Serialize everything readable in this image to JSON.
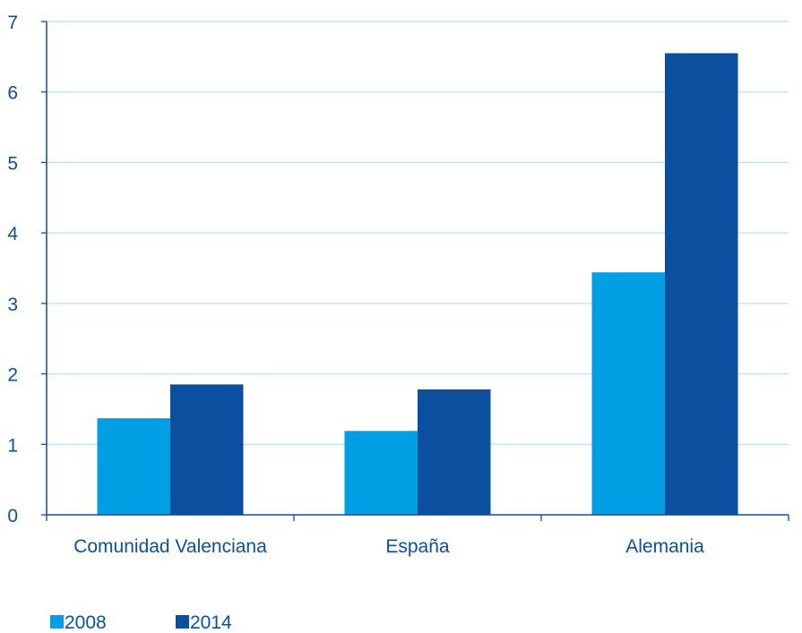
{
  "chart_data": {
    "type": "bar",
    "categories": [
      "Comunidad Valenciana",
      "España",
      "Alemania"
    ],
    "series": [
      {
        "name": "2008",
        "values": [
          1.37,
          1.19,
          3.44
        ],
        "color": "#009fe3"
      },
      {
        "name": "2014",
        "values": [
          1.85,
          1.78,
          6.55
        ],
        "color": "#0b4f9f"
      }
    ],
    "yticks": [
      "0",
      "1",
      "2",
      "3",
      "4",
      "5",
      "6",
      "7"
    ],
    "ylim": [
      0,
      7
    ],
    "grid": true,
    "gridColor": "#b9e3f6",
    "axisColor": "#0b4f9f",
    "textColor": "#0b4f9f",
    "legend_position": "bottom-left",
    "title": "",
    "xlabel": "",
    "ylabel": ""
  }
}
